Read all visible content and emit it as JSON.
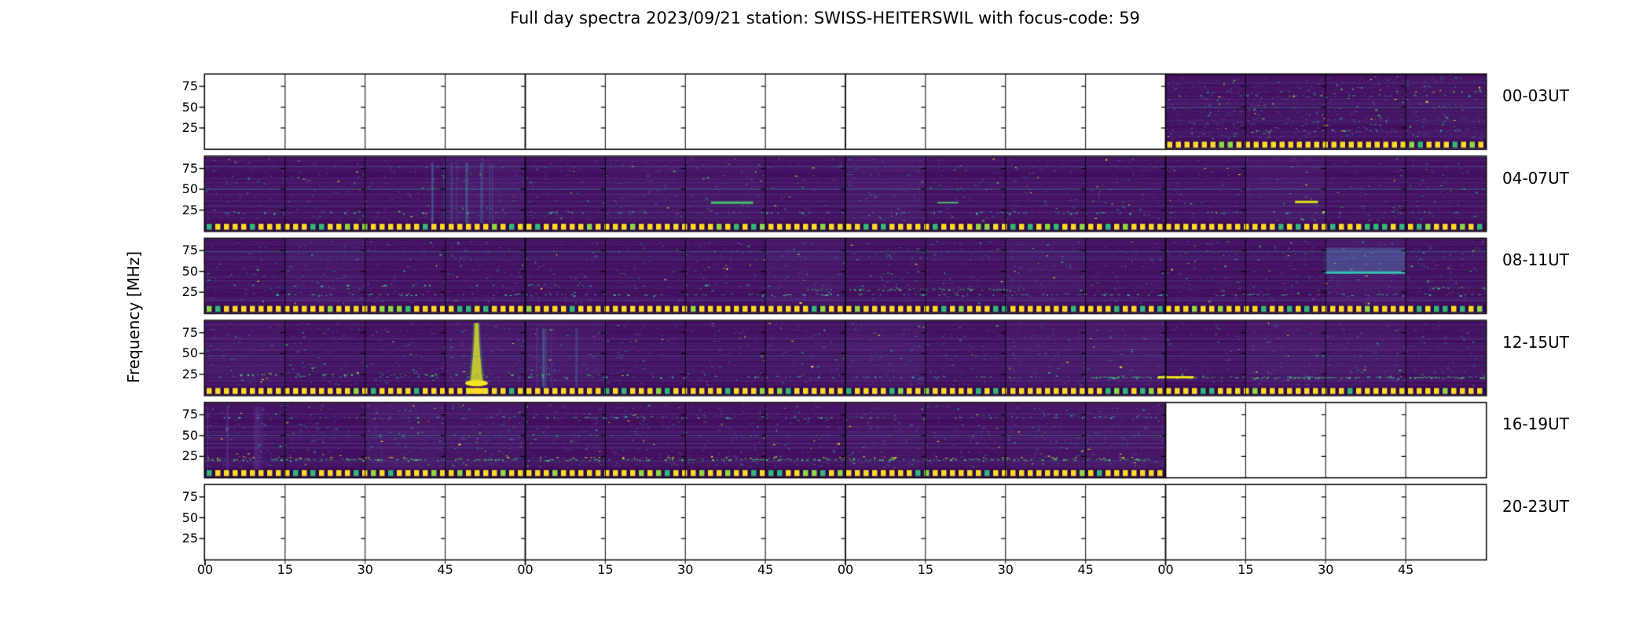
{
  "chart_data": {
    "type": "heatmap",
    "subtype": "solar-radio-spectrogram-full-day-overview",
    "title": "Full day spectra 2023/09/21 station: SWISS-HEITERSWIL with focus-code: 59",
    "date": "2023/09/21",
    "station": "SWISS-HEITERSWIL",
    "focus_code": "59",
    "colormap": "viridis",
    "ylabel": "Frequency [MHz]",
    "y_tick_labels": [
      "75",
      "50",
      "25"
    ],
    "x_tick_labels": [
      "00",
      "15",
      "30",
      "45",
      "00",
      "15",
      "30",
      "45",
      "00",
      "15",
      "30",
      "45",
      "00",
      "15",
      "30",
      "45"
    ],
    "minutes_per_panel": 240,
    "segment_minutes": 15,
    "panels_grid": "6 rows x 16 quarter-hour segments",
    "colors": {
      "background": "#ffffff",
      "frame": "#000000",
      "spectrum_base": "#410e5c",
      "speckle_purple": "#6a50aa",
      "speckle_blue": "#31688e",
      "speckle_teal": "#26968c",
      "speckle_green": "#4ac16d",
      "speckle_yellow": "#fde725",
      "marker_strip": "#fdd927",
      "marker_strip_dark": "#2e0a4e"
    },
    "rows": [
      {
        "label": "00-03UT",
        "data_coverage_min": [
          180,
          240
        ],
        "seed": 11,
        "speckle": 0.55,
        "features": [
          {
            "t": "hline",
            "y": 0.44,
            "x0": 0.75,
            "x1": 1.0,
            "c": "rgba(64,170,165,0.5)",
            "w": 1
          },
          {
            "t": "dots",
            "y": 0.28,
            "x0": 0.76,
            "x1": 1.0,
            "c": "#3fae9e",
            "d": 0.18
          },
          {
            "t": "dots",
            "y": 0.75,
            "x0": 0.76,
            "x1": 1.0,
            "c": "#41b089",
            "d": 0.12
          }
        ]
      },
      {
        "label": "04-07UT",
        "data_coverage_min": [
          0,
          240
        ],
        "seed": 22,
        "speckle": 0.9,
        "features": [
          {
            "t": "hline",
            "y": 0.43,
            "x0": 0,
            "x1": 1,
            "c": "rgba(64,170,165,0.55)",
            "w": 1
          },
          {
            "t": "hline",
            "y": 0.13,
            "x0": 0,
            "x1": 1,
            "c": "rgba(110,90,180,0.5)",
            "w": 1
          },
          {
            "t": "vstripes",
            "x0": 0.17,
            "x1": 0.23,
            "y0": 0.08,
            "y1": 0.9,
            "c": "rgba(70,160,170,0.25)",
            "n": 12
          },
          {
            "t": "dots",
            "y": 0.75,
            "x0": 0,
            "x1": 1,
            "c": "#3fae9e",
            "d": 0.2
          },
          {
            "t": "dash",
            "y": 0.62,
            "x0": 0.395,
            "x1": 0.428,
            "c": "#4ac16d",
            "h": 3
          },
          {
            "t": "dash",
            "y": 0.62,
            "x0": 0.572,
            "x1": 0.588,
            "c": "#4ac16d",
            "h": 2
          },
          {
            "t": "dash",
            "y": 0.61,
            "x0": 0.851,
            "x1": 0.869,
            "c": "#d8e219",
            "h": 3
          }
        ]
      },
      {
        "label": "08-11UT",
        "data_coverage_min": [
          0,
          240
        ],
        "seed": 33,
        "speckle": 1.0,
        "features": [
          {
            "t": "hline",
            "y": 0.17,
            "x0": 0,
            "x1": 1,
            "c": "rgba(64,170,165,0.5)",
            "w": 1
          },
          {
            "t": "dots",
            "y": 0.75,
            "x0": 0.05,
            "x1": 1,
            "c": "#3fae9e",
            "d": 0.3
          },
          {
            "t": "dots",
            "y": 0.68,
            "x0": 0.47,
            "x1": 0.63,
            "c": "#4ac16d",
            "d": 0.55
          },
          {
            "t": "patch",
            "x0": 0.874,
            "x1": 0.937,
            "y0": 0.12,
            "y1": 0.47,
            "c": "rgba(84,140,190,0.38)"
          },
          {
            "t": "dash",
            "y": 0.455,
            "x0": 0.874,
            "x1": 0.937,
            "c": "#35c4b5",
            "h": 3
          },
          {
            "t": "dots",
            "y": 0.66,
            "x0": 0.955,
            "x1": 1.0,
            "c": "#4ac16d",
            "d": 0.5
          },
          {
            "t": "dots",
            "y": 0.62,
            "x0": 0.0,
            "x1": 0.45,
            "c": "#3fae9e",
            "d": 0.15
          }
        ]
      },
      {
        "label": "12-15UT",
        "data_coverage_min": [
          0,
          240
        ],
        "seed": 44,
        "speckle": 1.0,
        "features": [
          {
            "t": "burst",
            "x": 0.212,
            "top_w": 5,
            "bot_w": 16,
            "y0": 0.03,
            "y1": 0.84,
            "c": "#f4e61e"
          },
          {
            "t": "vstripes",
            "x0": 0.252,
            "x1": 0.29,
            "y0": 0.1,
            "y1": 0.9,
            "c": "rgba(70,160,175,0.22)",
            "n": 9
          },
          {
            "t": "dots",
            "y": 0.75,
            "x0": 0,
            "x1": 1,
            "c": "#3fae9e",
            "d": 0.25
          },
          {
            "t": "dots",
            "y": 0.76,
            "x0": 0.69,
            "x1": 1.0,
            "c": "#4ac16d",
            "d": 0.6
          },
          {
            "t": "dash",
            "y": 0.76,
            "x0": 0.744,
            "x1": 0.772,
            "c": "#e8e419",
            "h": 3
          },
          {
            "t": "dots",
            "y": 0.72,
            "x0": 0.02,
            "x1": 0.33,
            "c": "#4ac16d",
            "d": 0.3
          },
          {
            "t": "hline",
            "y": 0.47,
            "x0": 0,
            "x1": 1,
            "c": "rgba(64,170,165,0.4)",
            "w": 1
          }
        ]
      },
      {
        "label": "16-19UT",
        "data_coverage_min": [
          0,
          180
        ],
        "seed": 55,
        "speckle": 1.1,
        "features": [
          {
            "t": "dots",
            "y": 0.76,
            "x0": 0,
            "x1": 0.75,
            "c": "#4ac16d",
            "d": 0.5
          },
          {
            "t": "dots",
            "y": 0.73,
            "x0": 0,
            "x1": 0.75,
            "c": "#d8e219",
            "d": 0.12
          },
          {
            "t": "dots",
            "y": 0.19,
            "x0": 0,
            "x1": 0.75,
            "c": "#3fae9e",
            "d": 0.18
          },
          {
            "t": "hline",
            "y": 0.43,
            "x0": 0,
            "x1": 0.75,
            "c": "rgba(64,170,165,0.45)",
            "w": 1
          },
          {
            "t": "vstripes",
            "x0": 0.0,
            "x1": 0.05,
            "y0": 0.05,
            "y1": 0.9,
            "c": "rgba(110,90,180,0.3)",
            "n": 6
          }
        ]
      },
      {
        "label": "20-23UT",
        "data_coverage_min": null,
        "seed": 66,
        "speckle": 0,
        "features": []
      }
    ]
  }
}
